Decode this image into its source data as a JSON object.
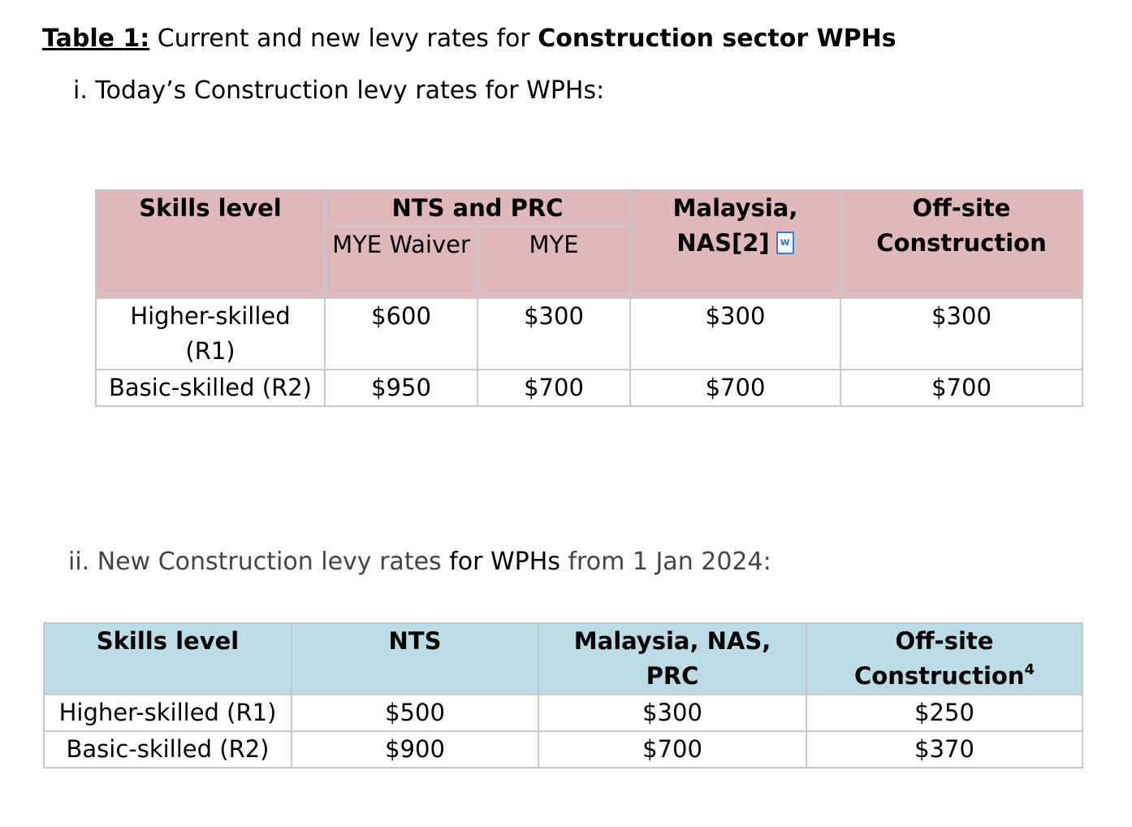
{
  "title": {
    "label": "Table 1:",
    "text": " Current and new levy rates for ",
    "bold": "Construction sector WPHs"
  },
  "section1": {
    "heading": "i. Today’s Construction levy rates for WPHs:"
  },
  "table1": {
    "headers": {
      "skills": "Skills level",
      "nts_prc": "NTS and PRC",
      "mye_waiver": "MYE Waiver",
      "mye": "MYE",
      "malaysia_nas": "Malaysia, NAS[2]",
      "offsite": "Off-site Construction"
    },
    "rows": [
      {
        "skill": "Higher-skilled (R1)",
        "mye_waiver": "$600",
        "mye": "$300",
        "malaysia": "$300",
        "offsite": "$300"
      },
      {
        "skill": "Basic-skilled (R2)",
        "mye_waiver": "$950",
        "mye": "$700",
        "malaysia": "$700",
        "offsite": "$700"
      }
    ]
  },
  "section2": {
    "part1": "ii. New Construction levy rates ",
    "part2": "for WPHs",
    "part3": " from 1 Jan 2024:"
  },
  "table2": {
    "headers": {
      "skills": "Skills level",
      "nts": "NTS",
      "malaysia_nas_prc": "Malaysia, NAS, PRC",
      "offsite": "Off-site Construction",
      "offsite_footnote": "4"
    },
    "rows": [
      {
        "skill": "Higher-skilled (R1)",
        "nts": "$500",
        "malaysia": "$300",
        "offsite": "$250"
      },
      {
        "skill": "Basic-skilled (R2)",
        "nts": "$900",
        "malaysia": "$700",
        "offsite": "$370"
      }
    ]
  },
  "icons": {
    "attachment": "word-document-icon"
  }
}
